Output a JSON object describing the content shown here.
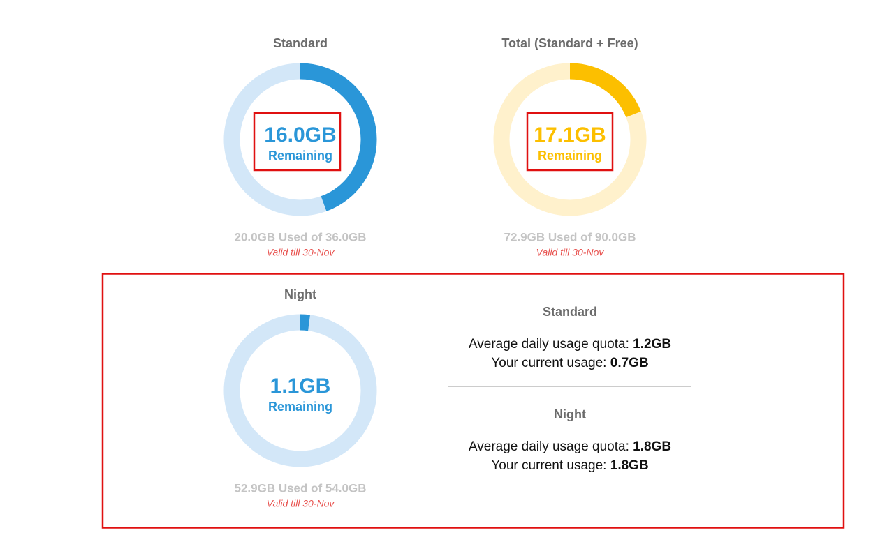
{
  "meters": [
    {
      "title": "Standard",
      "remaining": 16.0,
      "remaining_label": "16.0GB",
      "caption": "Remaining",
      "total": 36.0,
      "usage": "20.0GB Used of 36.0GB",
      "validity": "Valid till 30-Nov",
      "color": "#2a96d8",
      "track_color": "#d3e7f8"
    },
    {
      "title": "Total (Standard + Free)",
      "remaining": 17.1,
      "remaining_label": "17.1GB",
      "caption": "Remaining",
      "total": 90.0,
      "usage": "72.9GB Used of 90.0GB",
      "validity": "Valid till 30-Nov",
      "color": "#fcbf00",
      "track_color": "#fff1cc"
    },
    {
      "title": "Night",
      "remaining": 1.1,
      "remaining_label": "1.1GB",
      "caption": "Remaining",
      "total": 54.0,
      "usage": "52.9GB Used of 54.0GB",
      "validity": "Valid till 30-Nov",
      "color": "#2a96d8",
      "track_color": "#d3e7f8"
    }
  ],
  "quota": [
    {
      "heading": "Standard",
      "lines": [
        {
          "label": "Average daily usage quota:",
          "value": "1.2GB"
        },
        {
          "label": "Your current usage:",
          "value": "0.7GB"
        }
      ]
    },
    {
      "heading": "Night",
      "lines": [
        {
          "label": "Average daily usage quota:",
          "value": "1.8GB"
        },
        {
          "label": "Your current usage:",
          "value": "1.8GB"
        }
      ]
    }
  ]
}
